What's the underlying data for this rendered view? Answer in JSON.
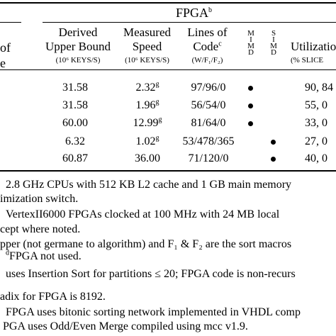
{
  "header": {
    "group_label": "FPGA",
    "group_sup": "b",
    "left_col_line1": "of",
    "left_col_line2": "e",
    "col_derived_line1": "Derived",
    "col_derived_line2": "Upper Bound",
    "col_derived_unit": "(10⁶ KEYS/S)",
    "col_speed_line1": "Measured",
    "col_speed_line2": "Speed",
    "col_speed_unit": "(10⁶ KEYS/S)",
    "col_loc_line1": "Lines of",
    "col_loc_line2": "Code",
    "col_loc_sup": "c",
    "col_loc_unit": "(W/F₁/F₂)",
    "col_mimd": [
      "M",
      "I",
      "M",
      "D"
    ],
    "col_simd": [
      "S",
      "I",
      "M",
      "D"
    ],
    "col_util_line1": "Utilizatio",
    "col_util_unit": "(% SLICE"
  },
  "rows": [
    {
      "derived": "31.58",
      "speed": "2.32",
      "speed_sup": "g",
      "loc": "97/96/0",
      "mimd": true,
      "simd": false,
      "util": "90, 84"
    },
    {
      "derived": "31.58",
      "speed": "1.96",
      "speed_sup": "g",
      "loc": "56/54/0",
      "mimd": true,
      "simd": false,
      "util": "55, 0"
    },
    {
      "derived": "60.00",
      "speed": "12.99",
      "speed_sup": "g",
      "loc": "81/64/0",
      "mimd": true,
      "simd": false,
      "util": "33, 0"
    },
    {
      "derived": "6.32",
      "speed": "1.02",
      "speed_sup": "g",
      "loc": "53/478/365",
      "mimd": false,
      "simd": true,
      "util": "27, 0"
    },
    {
      "derived": "60.87",
      "speed": "36.00",
      "speed_sup": "",
      "loc": "71/120/0",
      "mimd": false,
      "simd": true,
      "util": "40, 0"
    }
  ],
  "notes": [
    "2.8 GHz CPUs with 512 KB L2 cache and 1 GB main memory",
    "imization switch.",
    "VertexII6000 FPGAs clocked at 100 MHz with 24 MB local",
    "cept where noted.",
    "pper (not germane to algorithm) and F₁ & F₂ are the sort macros",
    "FPGA not used.",
    "uses Insertion Sort for partitions ≤ 20; FPGA code is non-recurs",
    "adix for FPGA is 8192.",
    "FPGA uses bitonic sorting network implemented in VHDL comp",
    "PGA uses Odd/Even Merge compiled using mcc v1.9."
  ],
  "note_d_sup": "d"
}
